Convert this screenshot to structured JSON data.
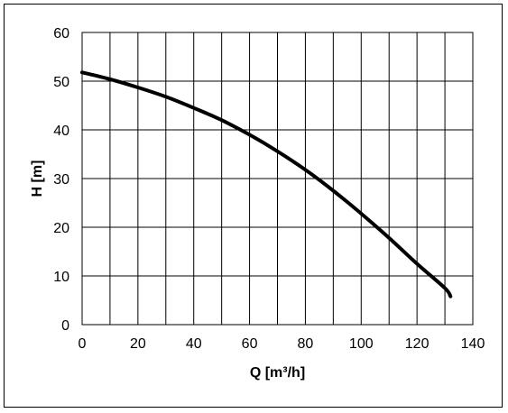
{
  "chart_data": {
    "type": "line",
    "title": "",
    "xlabel": "Q [m³/h]",
    "ylabel": "H [m]",
    "xlim": [
      0,
      140
    ],
    "ylim": [
      0,
      60
    ],
    "x_ticks": [
      0,
      20,
      40,
      60,
      80,
      100,
      120,
      140
    ],
    "y_ticks": [
      0,
      10,
      20,
      30,
      40,
      50,
      60
    ],
    "x_grid_step": 10,
    "y_grid_step": 10,
    "grid": true,
    "legend": "none",
    "series": [
      {
        "color": "#000000",
        "x": [
          0,
          10,
          20,
          30,
          40,
          50,
          60,
          70,
          80,
          90,
          100,
          110,
          120,
          130,
          132
        ],
        "y": [
          51.8,
          50.4,
          48.7,
          46.8,
          44.5,
          42.0,
          39.0,
          35.6,
          31.8,
          27.5,
          22.8,
          17.8,
          12.5,
          7.5,
          5.8
        ]
      }
    ]
  }
}
